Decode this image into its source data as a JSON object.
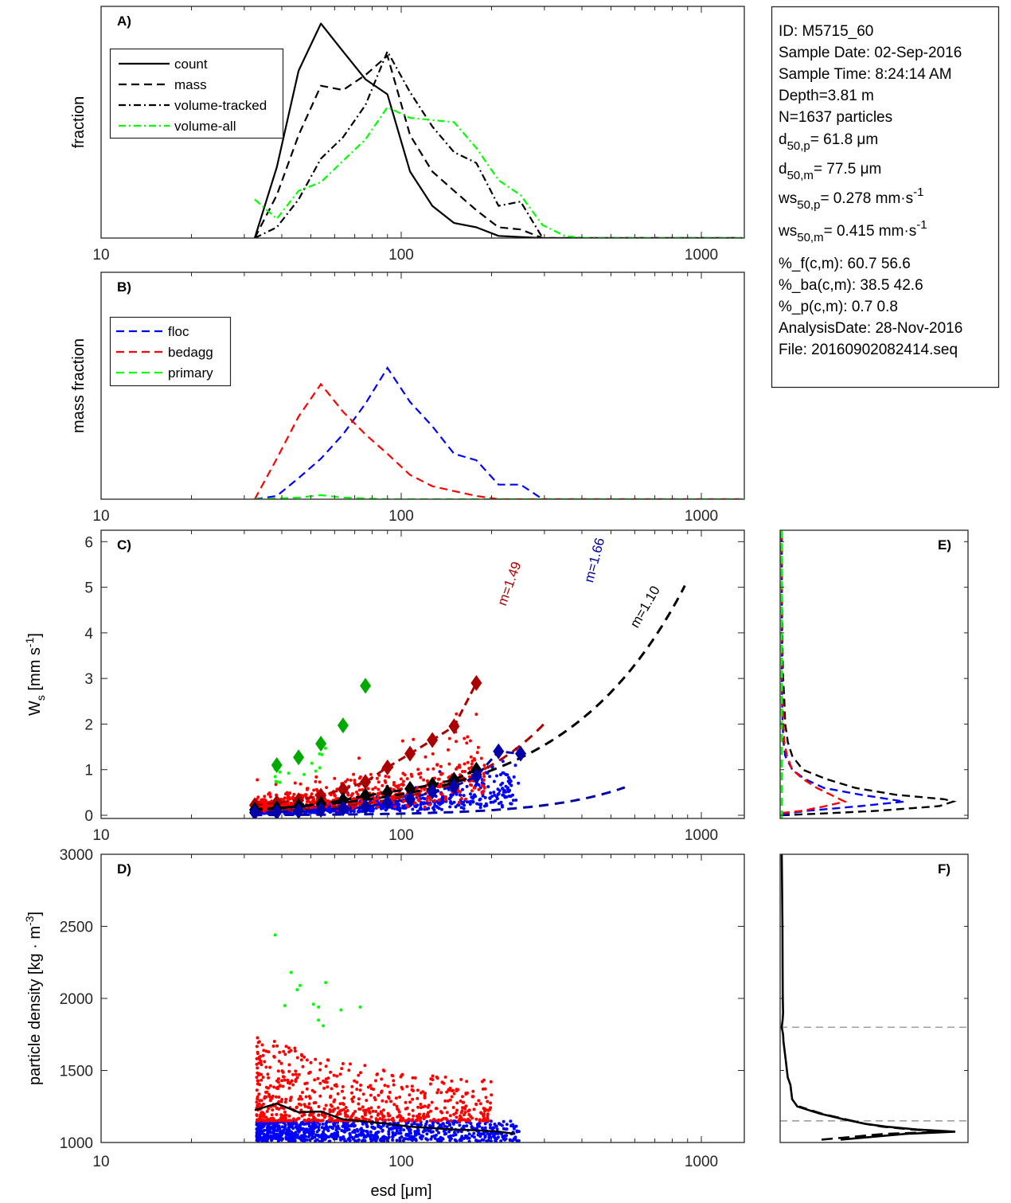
{
  "figure_title": "",
  "info_box": {
    "lines": [
      {
        "text": "ID: M5715_60"
      },
      {
        "text": "Sample Date: 02-Sep-2016"
      },
      {
        "text": "Sample Time:  8:24:14 AM"
      },
      {
        "text": "Depth=3.81 m"
      },
      {
        "text": "N=1637 particles"
      },
      {
        "base": "d",
        "sub": "50,p",
        "rest": "=  61.8 μm"
      },
      {
        "base": "d",
        "sub": "50,m",
        "rest": "=  77.5 μm"
      },
      {
        "base": "ws",
        "sub": "50,p",
        "rest": "= 0.278 mm·s",
        "sup": "-1"
      },
      {
        "base": "ws",
        "sub": "50,m",
        "rest": "= 0.415 mm·s",
        "sup": "-1"
      },
      {
        "text": "%_f(c,m): 60.7 56.6"
      },
      {
        "text": "%_ba(c,m): 38.5 42.6"
      },
      {
        "text": "%_p(c,m): 0.7 0.8"
      },
      {
        "text": "AnalysisDate: 28-Nov-2016"
      },
      {
        "text": "File: 20160902082414.seq"
      }
    ]
  },
  "colors": {
    "floc": "#0000ff",
    "bedagg": "#ff0000",
    "primary": "#00ff00",
    "floc_dark": "#0000aa",
    "bedagg_dark": "#aa0000",
    "primary_dark": "#00aa00",
    "black": "#000000",
    "grid_dash": "#808080"
  },
  "chart_data": [
    {
      "id": "A",
      "panel_label": "A)",
      "type": "line",
      "xscale": "log",
      "xlim": [
        10,
        1400
      ],
      "xticks": [
        10,
        100,
        1000
      ],
      "xtick_labels": [
        "10",
        "100",
        "1000"
      ],
      "ylabel": "fraction",
      "ylim": [
        0,
        1.08
      ],
      "yticks": [],
      "legend": {
        "placement": "top-left",
        "entries": [
          "count",
          "mass",
          "volume-tracked",
          "volume-all"
        ]
      },
      "x": [
        32.5,
        38.5,
        45.5,
        54,
        64,
        76,
        90,
        107,
        127,
        150,
        178,
        211,
        250,
        296,
        351,
        416,
        493,
        585,
        693,
        822,
        974,
        1155,
        1369
      ],
      "series": [
        {
          "name": "count",
          "style": "solid",
          "color": "#000000",
          "values": [
            0.0,
            0.33,
            0.78,
            1.0,
            0.87,
            0.74,
            0.67,
            0.31,
            0.15,
            0.07,
            0.05,
            0.01,
            0.005,
            0.0,
            0,
            0,
            0,
            0,
            0,
            0,
            0,
            0,
            0
          ]
        },
        {
          "name": "mass",
          "style": "dashed",
          "color": "#000000",
          "values": [
            0.0,
            0.2,
            0.48,
            0.71,
            0.69,
            0.76,
            0.85,
            0.48,
            0.31,
            0.22,
            0.13,
            0.05,
            0.04,
            0.0,
            0,
            0,
            0,
            0,
            0,
            0,
            0,
            0,
            0
          ]
        },
        {
          "name": "volume-tracked",
          "style": "dashdot",
          "color": "#000000",
          "values": [
            0.0,
            0.05,
            0.18,
            0.37,
            0.47,
            0.62,
            0.87,
            0.68,
            0.52,
            0.4,
            0.35,
            0.15,
            0.17,
            0.0,
            0,
            0,
            0,
            0,
            0,
            0,
            0,
            0,
            0
          ]
        },
        {
          "name": "volume-all",
          "style": "dashdot",
          "color": "#00ff00",
          "values": [
            0.18,
            0.09,
            0.22,
            0.26,
            0.36,
            0.46,
            0.61,
            0.56,
            0.55,
            0.54,
            0.42,
            0.27,
            0.2,
            0.06,
            0.01,
            0.0,
            0,
            0,
            0,
            0,
            0,
            0,
            0
          ]
        }
      ]
    },
    {
      "id": "B",
      "panel_label": "B)",
      "type": "line",
      "xscale": "log",
      "xlim": [
        10,
        1400
      ],
      "xticks": [
        10,
        100,
        1000
      ],
      "xtick_labels": [
        "10",
        "100",
        "1000"
      ],
      "ylabel": "mass fraction",
      "ylim": [
        0,
        1.4
      ],
      "yticks": [],
      "legend": {
        "placement": "top-left",
        "entries": [
          "floc",
          "bedagg",
          "primary"
        ]
      },
      "x": [
        32.5,
        38.5,
        45.5,
        54,
        64,
        76,
        90,
        107,
        127,
        150,
        178,
        211,
        250,
        296,
        351,
        416,
        493,
        585,
        693,
        822,
        974,
        1155,
        1369
      ],
      "series": [
        {
          "name": "floc",
          "style": "dashed",
          "color": "#0000ff",
          "values": [
            0.0,
            0.02,
            0.13,
            0.25,
            0.4,
            0.59,
            0.81,
            0.6,
            0.45,
            0.28,
            0.24,
            0.09,
            0.09,
            0.0,
            0,
            0,
            0,
            0,
            0,
            0,
            0,
            0,
            0
          ]
        },
        {
          "name": "bedagg",
          "style": "dashed",
          "color": "#ff0000",
          "values": [
            0.0,
            0.25,
            0.51,
            0.71,
            0.54,
            0.4,
            0.28,
            0.15,
            0.08,
            0.05,
            0.02,
            0.0,
            0,
            0,
            0,
            0,
            0,
            0,
            0,
            0,
            0,
            0,
            0
          ]
        },
        {
          "name": "primary",
          "style": "dashed",
          "color": "#00ff00",
          "values": [
            0.0,
            0.005,
            0.01,
            0.025,
            0.01,
            0.005,
            0.0,
            0,
            0,
            0,
            0,
            0,
            0,
            0,
            0,
            0,
            0,
            0,
            0,
            0,
            0,
            0,
            0
          ]
        }
      ]
    },
    {
      "id": "C",
      "panel_label": "C)",
      "type": "scatter",
      "xscale": "log",
      "xlim": [
        10,
        1400
      ],
      "xticks": [
        10,
        100,
        1000
      ],
      "xtick_labels": [
        "10",
        "100",
        "1000"
      ],
      "ylabel": "W_s [mm s^-1]",
      "ylim": [
        -0.07,
        6.25
      ],
      "yticks": [
        0,
        1,
        2,
        3,
        4,
        5,
        6
      ],
      "ytick_labels": [
        "0",
        "1",
        "2",
        "3",
        "4",
        "5",
        "6"
      ],
      "scatter_clouds": [
        {
          "name": "floc",
          "color": "#0000ff",
          "n": 800,
          "xrange": [
            33,
            250
          ],
          "ymodel": "0.0025*x^1.0",
          "spread": 0.5
        },
        {
          "name": "bedagg",
          "color": "#ff0000",
          "n": 650,
          "xrange": [
            33,
            190
          ],
          "ymodel": "0.0085*x^0.9",
          "spread": 0.7
        },
        {
          "name": "primary",
          "color": "#00ff00",
          "n": 14,
          "xrange": [
            38,
            60
          ],
          "ymodel": "0.028*x^0.95",
          "spread": 0.25
        }
      ],
      "bin_means": [
        {
          "name": "primary",
          "color": "#00aa00",
          "x": [
            38.5,
            45.5,
            54,
            64,
            76
          ],
          "y": [
            1.1,
            1.27,
            1.57,
            1.97,
            2.84
          ]
        },
        {
          "name": "bedagg",
          "color": "#aa0000",
          "x": [
            32.5,
            38.5,
            45.5,
            54,
            64,
            76,
            90,
            107,
            127,
            150,
            178
          ],
          "y": [
            0.22,
            0.28,
            0.33,
            0.43,
            0.57,
            0.73,
            1.05,
            1.35,
            1.65,
            1.95,
            2.9
          ]
        },
        {
          "name": "all",
          "color": "#000000",
          "x": [
            32.5,
            38.5,
            45.5,
            54,
            64,
            76,
            90,
            107,
            127,
            150,
            178
          ],
          "y": [
            0.12,
            0.15,
            0.2,
            0.25,
            0.33,
            0.43,
            0.5,
            0.58,
            0.67,
            0.78,
            1.0
          ]
        },
        {
          "name": "floc",
          "color": "#0000aa",
          "x": [
            32.5,
            38.5,
            45.5,
            54,
            64,
            76,
            90,
            107,
            127,
            150,
            178,
            211,
            250
          ],
          "y": [
            0.06,
            0.07,
            0.09,
            0.12,
            0.15,
            0.18,
            0.28,
            0.35,
            0.52,
            0.63,
            0.85,
            1.4,
            1.35
          ]
        }
      ],
      "fits": [
        {
          "label": "m=1.49",
          "color": "#aa0000",
          "coef": 0.00041,
          "exp": 1.49,
          "xmax": 300
        },
        {
          "label": "m=1.66",
          "color": "#0000aa",
          "coef": 1.7e-05,
          "exp": 1.66,
          "xmax": 560
        },
        {
          "label": "m=1.10",
          "color": "#000000",
          "coef": 0.0029,
          "exp": 1.1,
          "xmax": 900
        }
      ]
    },
    {
      "id": "D",
      "panel_label": "D)",
      "type": "scatter",
      "xscale": "log",
      "xlim": [
        10,
        1400
      ],
      "xticks": [
        10,
        100,
        1000
      ],
      "xtick_labels": [
        "10",
        "100",
        "1000"
      ],
      "xlabel": "esd [μm]",
      "ylabel": "particle density [kg · m^-3]",
      "ylim": [
        1000,
        3000
      ],
      "yticks": [
        1000,
        1500,
        2000,
        2500,
        3000
      ],
      "ytick_labels": [
        "1000",
        "1500",
        "2000",
        "2500",
        "3000"
      ],
      "scatter_clouds": [
        {
          "name": "floc",
          "color": "#0000ff",
          "n": 900,
          "xrange": [
            33,
            250
          ],
          "yrange": [
            1005,
            1150
          ]
        },
        {
          "name": "bedagg",
          "color": "#ff0000",
          "n": 700,
          "xrange": [
            33,
            200
          ],
          "yrange": [
            1150,
            1750
          ]
        }
      ],
      "primary_points": {
        "color": "#00ff00",
        "x": [
          38,
          41,
          43,
          45,
          46,
          51,
          53,
          53,
          55,
          56,
          63,
          73
        ],
        "y": [
          2440,
          1950,
          2180,
          2060,
          2090,
          1960,
          1940,
          1850,
          1810,
          2110,
          1920,
          1940
        ]
      },
      "mean_line": {
        "color": "#000000",
        "x": [
          32.5,
          38.5,
          45.5,
          54,
          64,
          76,
          90,
          107,
          127,
          150,
          178,
          211,
          240
        ],
        "y": [
          1225,
          1270,
          1210,
          1215,
          1160,
          1145,
          1130,
          1110,
          1100,
          1090,
          1085,
          1075,
          1060
        ]
      }
    },
    {
      "id": "E",
      "panel_label": "E)",
      "type": "line",
      "orientation": "vertical-distribution",
      "ylim": [
        -0.07,
        6.25
      ],
      "series": [
        {
          "name": "all",
          "color": "#000000",
          "style": "dashed",
          "y": [
            0.0,
            0.05,
            0.1,
            0.2,
            0.3,
            0.35,
            0.45,
            0.6,
            0.8,
            1.0,
            1.3,
            1.6,
            2.0,
            2.5,
            3.0,
            3.5,
            4.0,
            5.0,
            6.25
          ],
          "values": [
            0.0,
            0.3,
            0.55,
            0.9,
            0.98,
            0.93,
            0.65,
            0.42,
            0.25,
            0.12,
            0.06,
            0.035,
            0.02,
            0.015,
            0.008,
            0.005,
            0.003,
            0.001,
            0.0
          ]
        },
        {
          "name": "floc",
          "color": "#0000ff",
          "style": "dashed",
          "y": [
            0.0,
            0.05,
            0.1,
            0.2,
            0.3,
            0.45,
            0.6,
            0.8,
            1.0,
            1.3,
            1.6,
            2.0,
            2.5,
            3.0,
            6.25
          ],
          "values": [
            0.0,
            0.05,
            0.15,
            0.45,
            0.7,
            0.45,
            0.24,
            0.13,
            0.06,
            0.02,
            0.01,
            0.005,
            0.002,
            0.001,
            0.0
          ]
        },
        {
          "name": "bedagg",
          "color": "#ff0000",
          "style": "dashed",
          "y": [
            0.05,
            0.1,
            0.2,
            0.3,
            0.45,
            0.6,
            0.8,
            1.0,
            1.3,
            1.6,
            2.0,
            2.5,
            3.0,
            6.25
          ],
          "values": [
            0.0,
            0.12,
            0.25,
            0.36,
            0.28,
            0.2,
            0.12,
            0.06,
            0.03,
            0.015,
            0.01,
            0.005,
            0.002,
            0.0
          ]
        },
        {
          "name": "primary",
          "color": "#00ff00",
          "style": "dashed",
          "y": [
            -0.07,
            6.25
          ],
          "values": [
            0.0,
            0.0
          ]
        }
      ]
    },
    {
      "id": "F",
      "panel_label": "F)",
      "type": "line",
      "orientation": "vertical-distribution",
      "ylim": [
        1000,
        3000
      ],
      "reference_lines": [
        1150,
        1800
      ],
      "series": [
        {
          "name": "solid",
          "color": "#000000",
          "style": "solid",
          "y": [
            1020,
            1060,
            1075,
            1090,
            1110,
            1130,
            1160,
            1200,
            1250,
            1300,
            1350,
            1400,
            1450,
            1500,
            1550,
            1600,
            1650,
            1700,
            1750,
            1800,
            1850,
            1900,
            2000,
            2200,
            2500,
            2800,
            3000
          ],
          "values": [
            0.34,
            0.72,
            1.0,
            0.78,
            0.6,
            0.48,
            0.36,
            0.22,
            0.09,
            0.06,
            0.055,
            0.05,
            0.035,
            0.03,
            0.025,
            0.02,
            0.015,
            0.01,
            0.008,
            0.0,
            0.005,
            0.008,
            0.006,
            0.005,
            0.004,
            0.002,
            0.0
          ]
        },
        {
          "name": "dashed",
          "color": "#000000",
          "style": "dashed",
          "y": [
            1020,
            1060,
            1075,
            1090,
            1110,
            1130,
            1160,
            1200,
            1250
          ],
          "values": [
            0.23,
            0.6,
            0.95,
            0.75,
            0.58,
            0.48,
            0.37,
            0.23,
            0.1
          ]
        }
      ]
    }
  ]
}
